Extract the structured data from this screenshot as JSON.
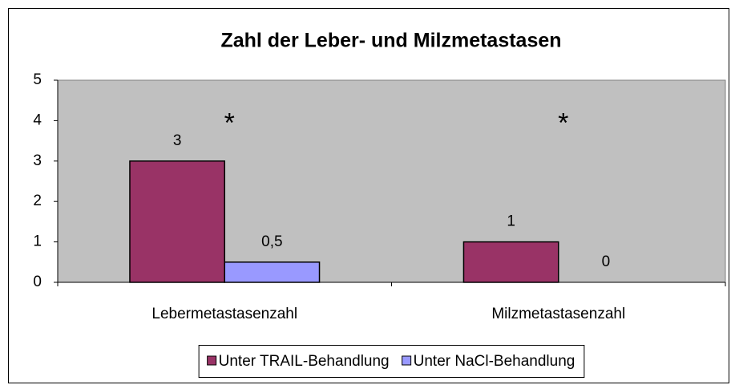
{
  "chart_data": {
    "type": "bar",
    "title": "Zahl der Leber- und Milzmetastasen",
    "categories": [
      "Lebermetastasenzahl",
      "Milzmetastasenzahl"
    ],
    "series": [
      {
        "name": "Unter TRAIL-Behandlung",
        "color": "#993366",
        "values": [
          3,
          1
        ],
        "value_labels": [
          "3",
          "1"
        ]
      },
      {
        "name": "Unter NaCl-Behandlung",
        "color": "#9999ff",
        "values": [
          0.5,
          0
        ],
        "value_labels": [
          "0,5",
          "0"
        ]
      }
    ],
    "annotations": [
      "*",
      "*"
    ],
    "ylim": [
      0,
      5
    ],
    "yticks": [
      0,
      1,
      2,
      3,
      4,
      5
    ],
    "grid": false,
    "plot_background": "#c0c0c0",
    "legend": "bottom"
  }
}
